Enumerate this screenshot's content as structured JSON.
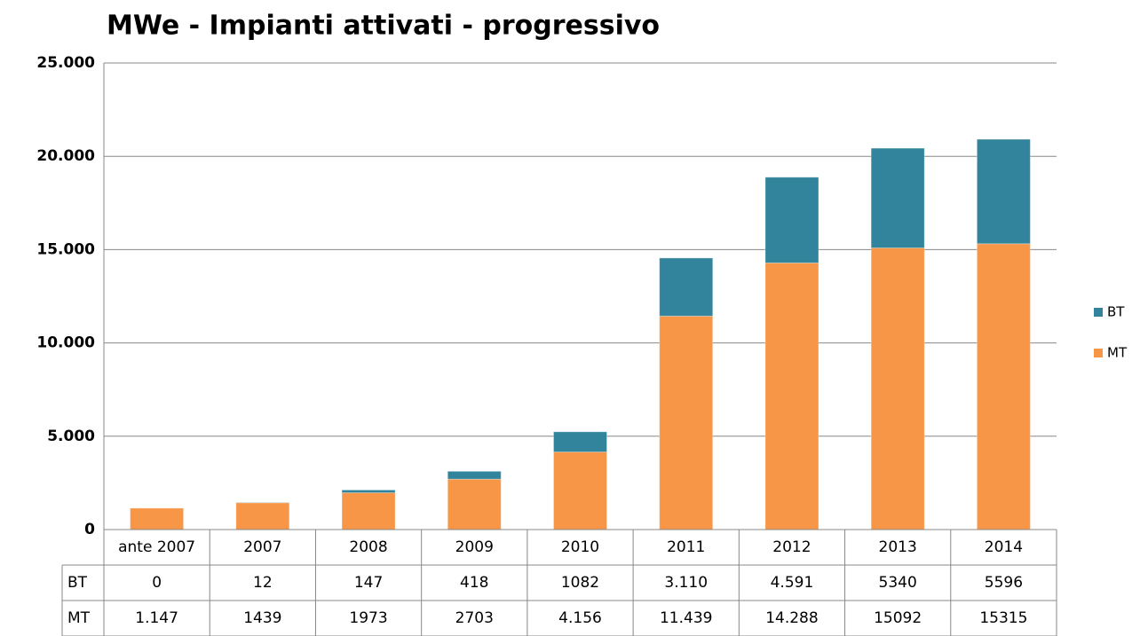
{
  "chart_data": {
    "type": "stacked-bar",
    "title": "MWe - Impianti attivati - progressivo",
    "categories": [
      "ante 2007",
      "2007",
      "2008",
      "2009",
      "2010",
      "2011",
      "2012",
      "2013",
      "2014"
    ],
    "series": [
      {
        "name": "BT",
        "color": "#31849b",
        "values": [
          0,
          12,
          147,
          418,
          1082,
          3110,
          4591,
          5340,
          5596
        ],
        "value_labels": [
          "0",
          "12",
          "147",
          "418",
          "1082",
          "3.110",
          "4.591",
          "5340",
          "5596"
        ]
      },
      {
        "name": "MT",
        "color": "#f79646",
        "values": [
          1147,
          1439,
          1973,
          2703,
          4156,
          11439,
          14288,
          15092,
          15315
        ],
        "value_labels": [
          "1.147",
          "1439",
          "1973",
          "2703",
          "4.156",
          "11.439",
          "14.288",
          "15092",
          "15315"
        ]
      }
    ],
    "ylim": [
      0,
      25000
    ],
    "yticks": [
      0,
      {
        "value": 5000,
        "label": "5.000"
      },
      {
        "value": 10000,
        "label": "10.000"
      },
      {
        "value": 15000,
        "label": "15.000"
      },
      {
        "value": 20000,
        "label": "20.000"
      },
      {
        "value": 25000,
        "label": "25.000"
      }
    ],
    "grid": true,
    "legend": "right"
  }
}
